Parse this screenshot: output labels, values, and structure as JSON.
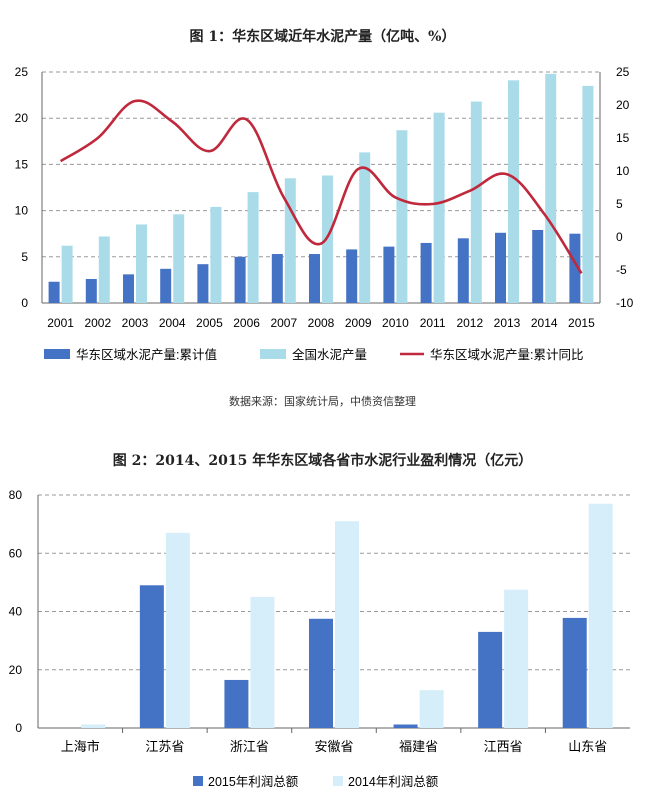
{
  "chart_data": [
    {
      "type": "bar+line",
      "title": "图 1：华东区域近年水泥产量（亿吨、%）",
      "categories": [
        "2001",
        "2002",
        "2003",
        "2004",
        "2005",
        "2006",
        "2007",
        "2008",
        "2009",
        "2010",
        "2011",
        "2012",
        "2013",
        "2014",
        "2015"
      ],
      "series": [
        {
          "name": "华东区域水泥产量:累计值",
          "type": "bar",
          "axis": "left",
          "color": "#4472C4",
          "values": [
            2.3,
            2.6,
            3.1,
            3.7,
            4.2,
            5.0,
            5.3,
            5.3,
            5.8,
            6.1,
            6.5,
            7.0,
            7.6,
            7.9,
            7.5
          ]
        },
        {
          "name": "全国水泥产量",
          "type": "bar",
          "axis": "left",
          "color": "#A9DCE8",
          "values": [
            6.2,
            7.2,
            8.5,
            9.6,
            10.4,
            12.0,
            13.5,
            13.8,
            16.3,
            18.7,
            20.6,
            21.8,
            24.1,
            24.8,
            23.5
          ]
        },
        {
          "name": "华东区域水泥产量:累计同比",
          "type": "line",
          "axis": "right",
          "color": "#C0283C",
          "values": [
            11.5,
            15,
            20.6,
            17.5,
            13,
            17.8,
            6,
            -1,
            10.3,
            6,
            5,
            7,
            9.5,
            3.5,
            -5.5
          ]
        }
      ],
      "y_left": {
        "min": 0,
        "max": 25,
        "ticks": [
          0,
          5,
          10,
          15,
          20,
          25
        ]
      },
      "y_right": {
        "min": -10,
        "max": 25,
        "ticks": [
          -10,
          -5,
          0,
          5,
          10,
          15,
          20,
          25
        ]
      },
      "grid": true,
      "legend": "bottom",
      "source": "数据来源：国家统计局，中债资信整理"
    },
    {
      "type": "bar",
      "title": "图 2：2014、2015 年华东区域各省市水泥行业盈利情况（亿元）",
      "categories": [
        "上海市",
        "江苏省",
        "浙江省",
        "安徽省",
        "福建省",
        "江西省",
        "山东省"
      ],
      "series": [
        {
          "name": "2015年利润总额",
          "color": "#4472C4",
          "values": [
            0,
            49,
            16.5,
            37.5,
            1.2,
            33,
            37.8
          ]
        },
        {
          "name": "2014年利润总额",
          "color": "#D6EEF9",
          "values": [
            1.2,
            67,
            45,
            71,
            13,
            47.5,
            77
          ]
        }
      ],
      "y": {
        "min": 0,
        "max": 80,
        "ticks": [
          0,
          20,
          40,
          60,
          80
        ]
      },
      "grid": true,
      "legend": "bottom"
    }
  ]
}
